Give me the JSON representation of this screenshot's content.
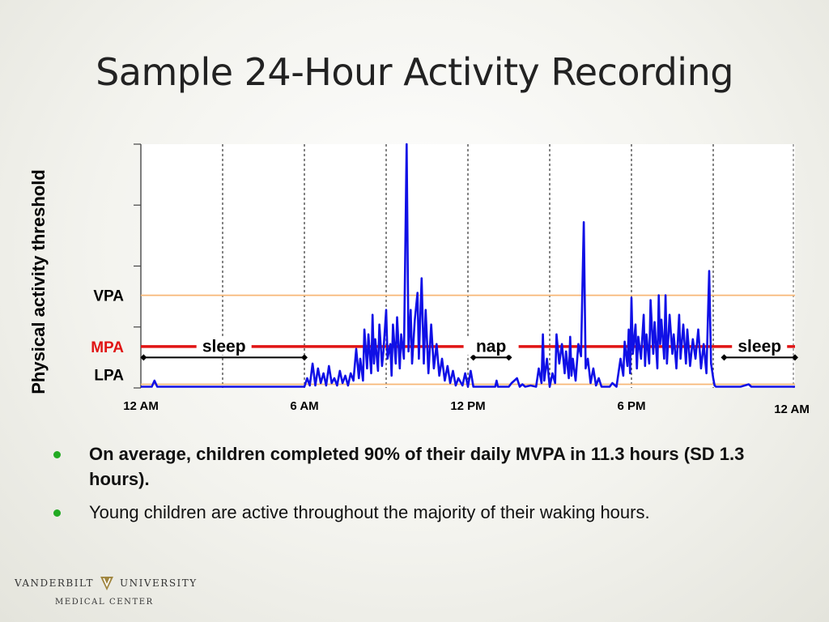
{
  "slide": {
    "title": "Sample 24-Hour Activity Recording",
    "bullets": [
      {
        "text": "On average, children completed 90% of their daily MVPA in 11.3 hours (SD 1.3 hours).",
        "bold": true
      },
      {
        "text": "Young children are active throughout the majority of their waking hours.",
        "bold": false
      }
    ],
    "bullet_color": "#22aa22"
  },
  "logo": {
    "name_left": "VANDERBILT",
    "name_right": "UNIVERSITY",
    "subline": "MEDICAL CENTER",
    "mark_color": "#a08640"
  },
  "chart_data": {
    "type": "line",
    "ylabel": "Physical activity threshold",
    "xlim_hours": [
      0,
      24
    ],
    "x_ticks": [
      {
        "hour": 0,
        "label": "12 AM"
      },
      {
        "hour": 6,
        "label": "6 AM"
      },
      {
        "hour": 12,
        "label": "12 PM"
      },
      {
        "hour": 18,
        "label": "6 PM"
      },
      {
        "hour": 24,
        "label": "12 AM"
      }
    ],
    "grid_hours": [
      3,
      6,
      9,
      12,
      15,
      18,
      21
    ],
    "ylim": [
      0,
      100
    ],
    "thresholds": [
      {
        "label": "VPA",
        "value": 38,
        "color": "#f7b777"
      },
      {
        "label": "MPA",
        "value": 17,
        "color": "#e01414"
      },
      {
        "label": "LPA",
        "value": 1.5,
        "color": "#f7b777"
      }
    ],
    "spans": [
      {
        "label": "sleep",
        "start": 0.1,
        "end": 6.0
      },
      {
        "label": "nap",
        "start": 12.2,
        "end": 13.5
      },
      {
        "label": "sleep",
        "start": 21.4,
        "end": 24.0
      }
    ],
    "series_color": "#1010e6",
    "series_points": [
      [
        0,
        0.5
      ],
      [
        0.4,
        0.5
      ],
      [
        0.5,
        3
      ],
      [
        0.6,
        0.5
      ],
      [
        1.5,
        0.5
      ],
      [
        2.0,
        0.5
      ],
      [
        3.0,
        0.5
      ],
      [
        4.0,
        0.5
      ],
      [
        5.0,
        0.5
      ],
      [
        5.9,
        0.5
      ],
      [
        6.0,
        0.5
      ],
      [
        6.1,
        4
      ],
      [
        6.2,
        1
      ],
      [
        6.3,
        10
      ],
      [
        6.4,
        1
      ],
      [
        6.5,
        8
      ],
      [
        6.6,
        2
      ],
      [
        6.7,
        6
      ],
      [
        6.8,
        1
      ],
      [
        6.9,
        9
      ],
      [
        7.0,
        2
      ],
      [
        7.1,
        4
      ],
      [
        7.2,
        1
      ],
      [
        7.3,
        7
      ],
      [
        7.4,
        2
      ],
      [
        7.5,
        5
      ],
      [
        7.6,
        1
      ],
      [
        7.7,
        6
      ],
      [
        7.8,
        3
      ],
      [
        7.9,
        16
      ],
      [
        8.0,
        4
      ],
      [
        8.05,
        12
      ],
      [
        8.15,
        3
      ],
      [
        8.2,
        24
      ],
      [
        8.3,
        8
      ],
      [
        8.35,
        22
      ],
      [
        8.45,
        6
      ],
      [
        8.5,
        30
      ],
      [
        8.55,
        10
      ],
      [
        8.6,
        20
      ],
      [
        8.7,
        7
      ],
      [
        8.75,
        26
      ],
      [
        8.85,
        9
      ],
      [
        8.9,
        15
      ],
      [
        9.0,
        32
      ],
      [
        9.05,
        12
      ],
      [
        9.15,
        18
      ],
      [
        9.2,
        5
      ],
      [
        9.25,
        26
      ],
      [
        9.35,
        10
      ],
      [
        9.4,
        29
      ],
      [
        9.5,
        8
      ],
      [
        9.55,
        22
      ],
      [
        9.65,
        12
      ],
      [
        9.75,
        100
      ],
      [
        9.82,
        15
      ],
      [
        9.9,
        32
      ],
      [
        9.95,
        10
      ],
      [
        10.05,
        28
      ],
      [
        10.15,
        39
      ],
      [
        10.2,
        12
      ],
      [
        10.3,
        45
      ],
      [
        10.38,
        10
      ],
      [
        10.45,
        32
      ],
      [
        10.55,
        6
      ],
      [
        10.65,
        26
      ],
      [
        10.75,
        8
      ],
      [
        10.85,
        18
      ],
      [
        10.95,
        5
      ],
      [
        11.05,
        12
      ],
      [
        11.15,
        3
      ],
      [
        11.25,
        9
      ],
      [
        11.35,
        2
      ],
      [
        11.45,
        7
      ],
      [
        11.55,
        1
      ],
      [
        11.65,
        4
      ],
      [
        11.8,
        1
      ],
      [
        11.9,
        6
      ],
      [
        12.0,
        0.5
      ],
      [
        12.1,
        7
      ],
      [
        12.2,
        0.5
      ],
      [
        13.0,
        0.5
      ],
      [
        13.05,
        3
      ],
      [
        13.1,
        0.5
      ],
      [
        13.5,
        0.5
      ],
      [
        13.6,
        2
      ],
      [
        13.8,
        4
      ],
      [
        13.9,
        0.5
      ],
      [
        14.0,
        1.5
      ],
      [
        14.1,
        0.5
      ],
      [
        14.3,
        1
      ],
      [
        14.5,
        0.5
      ],
      [
        14.6,
        8
      ],
      [
        14.7,
        2
      ],
      [
        14.75,
        22
      ],
      [
        14.8,
        3
      ],
      [
        14.9,
        12
      ],
      [
        15.0,
        0.5
      ],
      [
        15.1,
        6
      ],
      [
        15.2,
        2
      ],
      [
        15.25,
        22
      ],
      [
        15.35,
        10
      ],
      [
        15.45,
        18
      ],
      [
        15.55,
        6
      ],
      [
        15.6,
        15
      ],
      [
        15.7,
        4
      ],
      [
        15.75,
        21
      ],
      [
        15.8,
        5
      ],
      [
        15.85,
        12
      ],
      [
        15.95,
        3
      ],
      [
        16.05,
        18
      ],
      [
        16.15,
        13
      ],
      [
        16.25,
        68
      ],
      [
        16.32,
        8
      ],
      [
        16.4,
        12
      ],
      [
        16.5,
        2
      ],
      [
        16.6,
        8
      ],
      [
        16.7,
        1
      ],
      [
        16.8,
        4
      ],
      [
        16.9,
        0.5
      ],
      [
        17.2,
        0.5
      ],
      [
        17.3,
        2
      ],
      [
        17.45,
        0.5
      ],
      [
        17.6,
        12
      ],
      [
        17.7,
        5
      ],
      [
        17.75,
        19
      ],
      [
        17.85,
        9
      ],
      [
        17.9,
        24
      ],
      [
        17.95,
        6
      ],
      [
        18.0,
        37
      ],
      [
        18.05,
        14
      ],
      [
        18.15,
        26
      ],
      [
        18.2,
        8
      ],
      [
        18.25,
        21
      ],
      [
        18.35,
        12
      ],
      [
        18.45,
        30
      ],
      [
        18.5,
        9
      ],
      [
        18.55,
        22
      ],
      [
        18.65,
        10
      ],
      [
        18.7,
        36
      ],
      [
        18.8,
        14
      ],
      [
        18.85,
        27
      ],
      [
        18.95,
        8
      ],
      [
        19.0,
        38
      ],
      [
        19.05,
        18
      ],
      [
        19.1,
        28
      ],
      [
        19.2,
        12
      ],
      [
        19.25,
        38
      ],
      [
        19.3,
        10
      ],
      [
        19.4,
        30
      ],
      [
        19.5,
        14
      ],
      [
        19.55,
        22
      ],
      [
        19.65,
        8
      ],
      [
        19.75,
        30
      ],
      [
        19.8,
        12
      ],
      [
        19.9,
        26
      ],
      [
        20.0,
        10
      ],
      [
        20.05,
        24
      ],
      [
        20.15,
        9
      ],
      [
        20.25,
        20
      ],
      [
        20.35,
        12
      ],
      [
        20.45,
        24
      ],
      [
        20.55,
        8
      ],
      [
        20.65,
        18
      ],
      [
        20.75,
        6
      ],
      [
        20.85,
        48
      ],
      [
        20.92,
        10
      ],
      [
        21.0,
        4
      ],
      [
        21.05,
        1
      ],
      [
        21.1,
        0.5
      ],
      [
        21.5,
        0.5
      ],
      [
        22.0,
        0.5
      ],
      [
        22.3,
        1.5
      ],
      [
        22.4,
        0.5
      ],
      [
        23.0,
        0.5
      ],
      [
        23.5,
        0.5
      ],
      [
        24.0,
        0.5
      ]
    ]
  }
}
